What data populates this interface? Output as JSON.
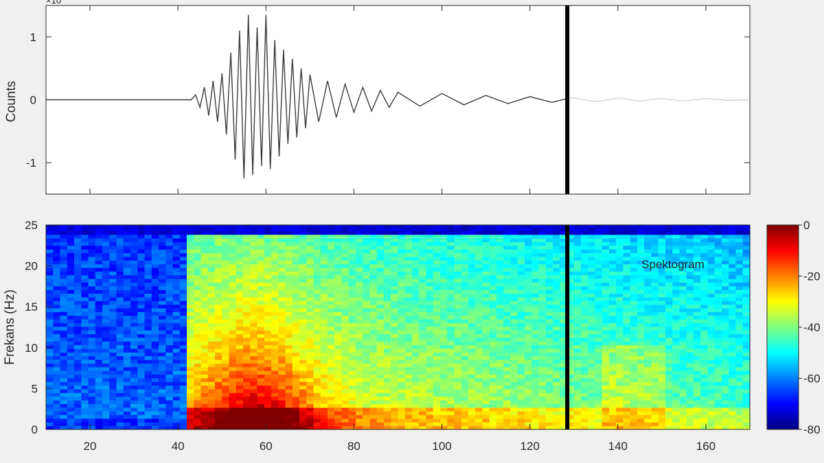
{
  "chart_data": [
    {
      "type": "line",
      "ylabel": "Counts",
      "exponent_label": "×10",
      "xlim": [
        10,
        170
      ],
      "ylim": [
        -1.5,
        1.5
      ],
      "yticks": [
        -1,
        0,
        1
      ],
      "xticks": [
        20,
        40,
        60,
        80,
        100,
        120,
        140,
        160
      ],
      "marker_x": 128.5,
      "series": [
        {
          "x": [
            10,
            40,
            43,
            44,
            45,
            46,
            47,
            48,
            49,
            50,
            51,
            52,
            53,
            54,
            55,
            56,
            57,
            58,
            59,
            60,
            61,
            62,
            63,
            64,
            65,
            66,
            67,
            68,
            69,
            70,
            72,
            74,
            76,
            78,
            80,
            82,
            84,
            86,
            88,
            90,
            95,
            100,
            105,
            110,
            115,
            120,
            125,
            128.5
          ],
          "y": [
            0,
            0,
            0,
            0.08,
            -0.12,
            0.2,
            -0.25,
            0.3,
            -0.35,
            0.42,
            -0.55,
            0.75,
            -0.95,
            1.1,
            -1.25,
            1.35,
            -1.2,
            1.15,
            -1.05,
            1.35,
            -1.1,
            0.95,
            -0.9,
            0.8,
            -0.7,
            0.65,
            -0.6,
            0.5,
            -0.45,
            0.4,
            -0.35,
            0.3,
            -0.28,
            0.25,
            -0.2,
            0.2,
            -0.18,
            0.15,
            -0.12,
            0.12,
            -0.1,
            0.1,
            -0.08,
            0.07,
            -0.06,
            0.05,
            -0.04,
            0.02
          ]
        },
        {
          "name": "",
          "x": [
            128.5,
            130,
            135,
            140,
            145,
            150,
            155,
            160,
            165,
            170
          ],
          "y": [
            0.02,
            0.03,
            -0.03,
            0.03,
            -0.02,
            0.02,
            -0.02,
            0.02,
            -0.01,
            0
          ]
        }
      ]
    },
    {
      "type": "heatmap",
      "title": "Spektogram",
      "ylabel": "Frekans (Hz)",
      "xlim": [
        10,
        170
      ],
      "ylim": [
        0,
        25
      ],
      "xticks": [
        20,
        40,
        60,
        80,
        100,
        120,
        140,
        160
      ],
      "yticks": [
        0,
        5,
        10,
        15,
        20,
        25
      ],
      "marker_x": 128.5,
      "value_range": [
        -80,
        0
      ],
      "colorbar_ticks": [
        "0",
        "-20",
        "-40",
        "-60",
        "-80"
      ],
      "onset_time": 40.5,
      "peak": {
        "time": 57,
        "frequency": 2,
        "level": -3
      },
      "background_level": -62
    }
  ]
}
